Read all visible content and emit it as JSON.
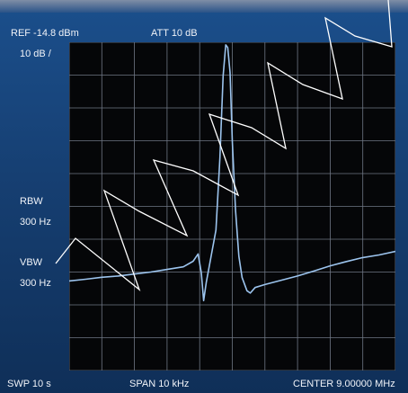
{
  "readouts": {
    "ref": "REF  -14.8 dBm",
    "att": "ATT  10 dB",
    "scale": "10   dB /",
    "rbw_label": "RBW",
    "rbw_value": "300 Hz",
    "vbw_label": "VBW",
    "vbw_value": "300 Hz",
    "sweep": "SWP  10  s",
    "span": "SPAN  10 kHz",
    "center": "CENTER  9.00000 MHz"
  },
  "colors": {
    "trace": "#9cc4ee",
    "grid": "#6f7785",
    "screen": "#050608",
    "watermark": "#ffffff"
  },
  "grid": {
    "divisions_x": 10,
    "divisions_y": 10
  },
  "chart_data": {
    "type": "line",
    "xlim": [
      8995,
      9005
    ],
    "ylim": [
      -114.8,
      -14.8
    ],
    "series": [
      {
        "points": [
          [
            8995.0,
            -87.5
          ],
          [
            8995.5,
            -87.0
          ],
          [
            8996.0,
            -86.4
          ],
          [
            8996.5,
            -86.0
          ],
          [
            8997.0,
            -85.4
          ],
          [
            8997.5,
            -84.8
          ],
          [
            8998.0,
            -84.0
          ],
          [
            8998.5,
            -83.2
          ],
          [
            8998.8,
            -81.5
          ],
          [
            8998.95,
            -79.3
          ],
          [
            8999.05,
            -85.0
          ],
          [
            8999.12,
            -93.5
          ],
          [
            8999.2,
            -88.0
          ],
          [
            8999.35,
            -80.0
          ],
          [
            8999.5,
            -72.0
          ],
          [
            8999.62,
            -50.0
          ],
          [
            8999.72,
            -25.0
          ],
          [
            8999.8,
            -15.6
          ],
          [
            8999.86,
            -16.4
          ],
          [
            8999.93,
            -24.0
          ],
          [
            9000.0,
            -45.0
          ],
          [
            9000.1,
            -66.0
          ],
          [
            9000.2,
            -80.0
          ],
          [
            9000.3,
            -86.5
          ],
          [
            9000.45,
            -90.5
          ],
          [
            9000.55,
            -91.2
          ],
          [
            9000.7,
            -89.5
          ],
          [
            9001.0,
            -88.6
          ],
          [
            9001.5,
            -87.3
          ],
          [
            9002.0,
            -86.0
          ],
          [
            9002.5,
            -84.5
          ],
          [
            9003.0,
            -82.9
          ],
          [
            9003.5,
            -81.6
          ],
          [
            9004.0,
            -80.4
          ],
          [
            9004.5,
            -79.6
          ],
          [
            9005.0,
            -78.5
          ]
        ]
      }
    ]
  }
}
